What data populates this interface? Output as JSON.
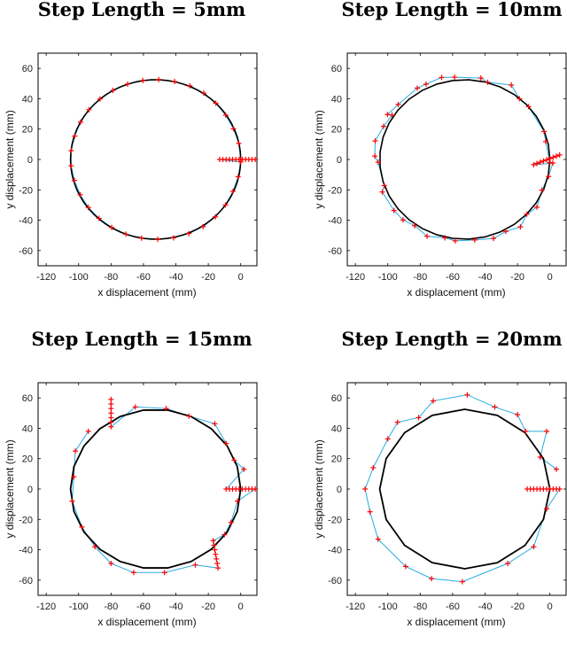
{
  "colors": {
    "path": "#000000",
    "trajectory": "#29abe2",
    "marker": "#ff0000",
    "axis": "#000000"
  },
  "chart_data": [
    {
      "type": "line",
      "title": "Step Length = 5mm",
      "xlabel": "x displacement (mm)",
      "ylabel": "y displacement (mm)",
      "xlim": [
        -125,
        10
      ],
      "ylim": [
        -70,
        70
      ],
      "xticks": [
        -120,
        -100,
        -80,
        -60,
        -40,
        -20,
        0
      ],
      "yticks": [
        -60,
        -40,
        -20,
        0,
        20,
        40,
        60
      ],
      "circle": {
        "center": [
          -52.5,
          0
        ],
        "radius": 52.5
      },
      "step_mm": 5,
      "points": [
        [
          0,
          0
        ],
        [
          -1.2,
          10.6
        ],
        [
          -4.5,
          20.2
        ],
        [
          -9.3,
          29.2
        ],
        [
          -15.4,
          37.1
        ],
        [
          -22.8,
          43.7
        ],
        [
          -31.4,
          48.5
        ],
        [
          -40.8,
          51.3
        ],
        [
          -50.6,
          52.6
        ],
        [
          -60.4,
          52.0
        ],
        [
          -69.8,
          49.6
        ],
        [
          -78.8,
          45.5
        ],
        [
          -86.8,
          39.8
        ],
        [
          -93.6,
          32.8
        ],
        [
          -98.8,
          24.6
        ],
        [
          -102.4,
          15.4
        ],
        [
          -104.6,
          5.8
        ],
        [
          -104.6,
          -4.2
        ],
        [
          -102.6,
          -13.8
        ],
        [
          -99.0,
          -23.2
        ],
        [
          -94.0,
          -31.6
        ],
        [
          -87.4,
          -38.8
        ],
        [
          -79.6,
          -44.8
        ],
        [
          -70.8,
          -49.2
        ],
        [
          -61.2,
          -51.8
        ],
        [
          -51.2,
          -52.6
        ],
        [
          -41.4,
          -51.6
        ],
        [
          -32.0,
          -48.8
        ],
        [
          -23.2,
          -44.2
        ],
        [
          -15.6,
          -37.8
        ],
        [
          -9.4,
          -30.0
        ],
        [
          -4.8,
          -21.0
        ],
        [
          -1.6,
          -11.4
        ],
        [
          0,
          -1.6
        ],
        [
          -13,
          0
        ],
        [
          -11,
          0
        ],
        [
          -9,
          0
        ],
        [
          -7,
          0
        ],
        [
          -5,
          0
        ],
        [
          -3,
          0
        ],
        [
          -1,
          0
        ],
        [
          1,
          0
        ],
        [
          3,
          0
        ],
        [
          5,
          0
        ],
        [
          7,
          0
        ],
        [
          9,
          0
        ]
      ]
    },
    {
      "type": "line",
      "title": "Step Length = 10mm",
      "xlabel": "x displacement (mm)",
      "ylabel": "y displacement (mm)",
      "xlim": [
        -125,
        10
      ],
      "ylim": [
        -70,
        70
      ],
      "xticks": [
        -120,
        -100,
        -80,
        -60,
        -40,
        -20,
        0
      ],
      "yticks": [
        -60,
        -40,
        -20,
        0,
        20,
        40,
        60
      ],
      "circle": {
        "center": [
          -52.5,
          0
        ],
        "radius": 52.5
      },
      "step_mm": 10,
      "points": [
        [
          0,
          -2
        ],
        [
          -2.6,
          11.8
        ],
        [
          -3.6,
          18.4
        ],
        [
          -13.2,
          34.8
        ],
        [
          -18.8,
          40.0
        ],
        [
          -23.8,
          49.0
        ],
        [
          -38.4,
          50.8
        ],
        [
          -42.6,
          53.6
        ],
        [
          -58.8,
          54.2
        ],
        [
          -66.8,
          54.0
        ],
        [
          -76.4,
          49.6
        ],
        [
          -81.8,
          47.0
        ],
        [
          -93.6,
          36.2
        ],
        [
          -100.2,
          29.6
        ],
        [
          -97.4,
          29.2
        ],
        [
          -102.6,
          21.8
        ],
        [
          -107.8,
          12.2
        ],
        [
          -108.0,
          2.2
        ],
        [
          -106.0,
          -1.8
        ],
        [
          -102.2,
          -17.2
        ],
        [
          -103.4,
          -21.4
        ],
        [
          -96.2,
          -33.6
        ],
        [
          -90.6,
          -39.8
        ],
        [
          -83.4,
          -43.6
        ],
        [
          -75.8,
          -50.6
        ],
        [
          -64.8,
          -51.6
        ],
        [
          -58.4,
          -53.6
        ],
        [
          -46.4,
          -53.0
        ],
        [
          -34.8,
          -52.0
        ],
        [
          -27.2,
          -47.4
        ],
        [
          -18.2,
          -44.4
        ],
        [
          -14.2,
          -36.0
        ],
        [
          -8.0,
          -31.4
        ],
        [
          -5.0,
          -20.2
        ],
        [
          -0.8,
          -11.2
        ],
        [
          1.8,
          -2.4
        ],
        [
          -10,
          -3.5
        ],
        [
          -8,
          -2.6
        ],
        [
          -6,
          -1.8
        ],
        [
          -4,
          -1.0
        ],
        [
          -2,
          -0.2
        ],
        [
          0,
          0.6
        ],
        [
          2,
          1.4
        ],
        [
          4,
          2.2
        ],
        [
          6,
          3.0
        ]
      ]
    },
    {
      "type": "line",
      "title": "Step Length = 15mm",
      "xlabel": "x displacement (mm)",
      "ylabel": "y displacement (mm)",
      "xlim": [
        -125,
        10
      ],
      "ylim": [
        -70,
        70
      ],
      "xticks": [
        -120,
        -100,
        -80,
        -60,
        -40,
        -20,
        0
      ],
      "yticks": [
        -60,
        -40,
        -20,
        0,
        20,
        40,
        60
      ],
      "circle": {
        "center": [
          -52.5,
          0
        ],
        "radius": 52.5
      },
      "step_mm": 15,
      "points": [
        [
          -80,
          59
        ],
        [
          -80,
          56
        ],
        [
          -80,
          53
        ],
        [
          -80,
          50
        ],
        [
          -80,
          47
        ],
        [
          -80,
          44
        ],
        [
          -80,
          41
        ],
        [
          -65,
          54
        ],
        [
          -46,
          53
        ],
        [
          -32,
          48
        ],
        [
          -16,
          43
        ],
        [
          -9,
          30
        ],
        [
          -4,
          19
        ],
        [
          2,
          13
        ],
        [
          -9,
          0
        ],
        [
          -7,
          0
        ],
        [
          -5,
          0
        ],
        [
          -3,
          0
        ],
        [
          -1,
          0
        ],
        [
          1,
          0
        ],
        [
          3,
          0
        ],
        [
          5,
          0
        ],
        [
          7,
          0
        ],
        [
          9,
          0
        ],
        [
          -2,
          -8
        ],
        [
          -6,
          -22
        ],
        [
          -10,
          -30
        ],
        [
          -17,
          -34
        ],
        [
          -16.5,
          -37
        ],
        [
          -16,
          -40
        ],
        [
          -15.5,
          -43
        ],
        [
          -15,
          -46
        ],
        [
          -14.5,
          -49
        ],
        [
          -14,
          -52
        ],
        [
          -28,
          -50
        ],
        [
          -47,
          -55
        ],
        [
          -66,
          -55
        ],
        [
          -80,
          -49
        ],
        [
          -90,
          -38
        ],
        [
          -98,
          -25
        ],
        [
          -104,
          -8
        ],
        [
          -103,
          8
        ],
        [
          -102,
          25
        ],
        [
          -94,
          38
        ]
      ]
    },
    {
      "type": "line",
      "title": "Step Length = 20mm",
      "xlabel": "x displacement (mm)",
      "ylabel": "y displacement (mm)",
      "xlim": [
        -125,
        10
      ],
      "ylim": [
        -70,
        70
      ],
      "xticks": [
        -120,
        -100,
        -80,
        -60,
        -40,
        -20,
        0
      ],
      "yticks": [
        -60,
        -40,
        -20,
        0,
        20,
        40,
        60
      ],
      "circle": {
        "center": [
          -52.5,
          0
        ],
        "radius": 52.5
      },
      "step_mm": 20,
      "points": [
        [
          -14,
          0
        ],
        [
          -12,
          0
        ],
        [
          -10,
          0
        ],
        [
          -8,
          0
        ],
        [
          -6,
          0
        ],
        [
          -4,
          0
        ],
        [
          -2,
          0
        ],
        [
          0,
          0
        ],
        [
          2,
          0
        ],
        [
          4,
          0
        ],
        [
          6,
          0
        ],
        [
          -2,
          -13
        ],
        [
          -10,
          -38
        ],
        [
          -26,
          -49
        ],
        [
          -54,
          -61
        ],
        [
          -73,
          -59
        ],
        [
          -89,
          -51
        ],
        [
          -106,
          -33
        ],
        [
          -111,
          -15
        ],
        [
          -114,
          0
        ],
        [
          -109,
          14
        ],
        [
          -100,
          33
        ],
        [
          -94,
          44
        ],
        [
          -81,
          47
        ],
        [
          -72,
          58
        ],
        [
          -51,
          62
        ],
        [
          -34,
          54
        ],
        [
          -20,
          49
        ],
        [
          -15,
          38
        ],
        [
          -2,
          38
        ],
        [
          -6,
          21
        ],
        [
          4,
          13
        ]
      ]
    }
  ]
}
